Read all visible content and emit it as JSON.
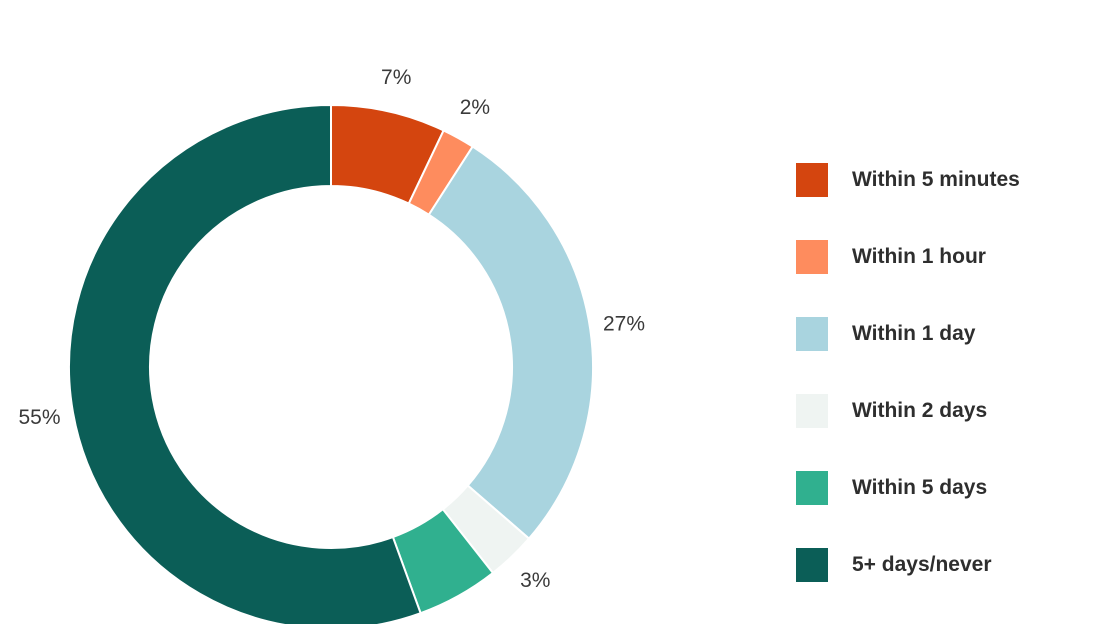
{
  "chart_data": {
    "type": "pie",
    "title": "",
    "categories": [
      "Within 5 minutes",
      "Within 1 hour",
      "Within 1 day",
      "Within 2 days",
      "Within 5 days",
      "5+ days/never"
    ],
    "values": [
      7,
      2,
      27,
      3,
      5,
      55
    ],
    "value_labels": [
      "7%",
      "2%",
      "27%",
      "3%",
      "",
      "55%"
    ],
    "colors": [
      "#d4450f",
      "#fe8c5e",
      "#a9d4df",
      "#eff4f2",
      "#30b08f",
      "#0b5e57"
    ],
    "legend_position": "right",
    "donut": true,
    "start_angle": "top, clockwise"
  },
  "legend": {
    "items": [
      {
        "label": "Within 5 minutes",
        "color": "#d4450f"
      },
      {
        "label": "Within 1 hour",
        "color": "#fe8c5e"
      },
      {
        "label": "Within 1 day",
        "color": "#a9d4df"
      },
      {
        "label": "Within 2 days",
        "color": "#eff4f2"
      },
      {
        "label": "Within 5 days",
        "color": "#30b08f"
      },
      {
        "label": "5+ days/never",
        "color": "#0b5e57"
      }
    ]
  }
}
